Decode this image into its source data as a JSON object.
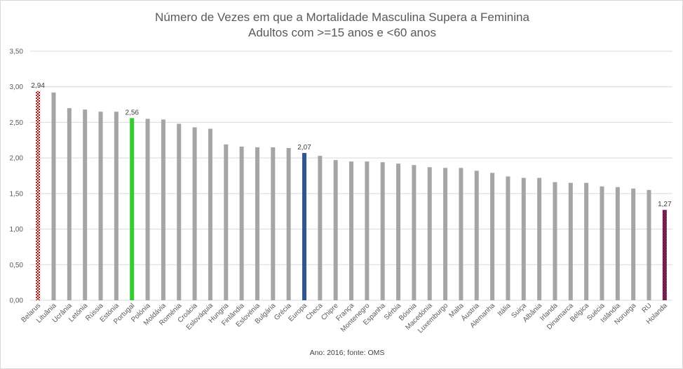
{
  "chart_data": {
    "type": "bar",
    "title": "Número de Vezes em que a Mortalidade Masculina Supera a Feminina",
    "subtitle": "Adultos com >=15 anos e <60 anos",
    "footnote": "Ano:  2016; fonte:  OMS",
    "ylim": [
      0,
      3.5
    ],
    "y_ticks": [
      "0,00",
      "0,50",
      "1,00",
      "1,50",
      "2,00",
      "2,50",
      "3,00",
      "3,50"
    ],
    "categories": [
      "Belarus",
      "Lituânia",
      "Ucrânia",
      "Letónia",
      "Rússia",
      "Estónia",
      "Portugal",
      "Polónia",
      "Moldávia",
      "Roménia",
      "Croácia",
      "Eslováquia",
      "Hungria",
      "Finlândia",
      "Eslovénia",
      "Bulgária",
      "Grécia",
      "Europa",
      "Checa",
      "Chipre",
      "França",
      "Montenegro",
      "Espanha",
      "Sérbia",
      "Bósnia",
      "Macedónia",
      "Luxemburgo",
      "Malta",
      "Áustria",
      "Alemanha",
      "Itália",
      "Suiça",
      "Albânia",
      "Irlanda",
      "Dinamarca",
      "Bélgica",
      "Suécia",
      "Islândia",
      "Noruega",
      "RU",
      "Holanda"
    ],
    "values": [
      2.94,
      2.92,
      2.7,
      2.68,
      2.65,
      2.65,
      2.56,
      2.55,
      2.54,
      2.48,
      2.43,
      2.41,
      2.19,
      2.16,
      2.15,
      2.15,
      2.14,
      2.07,
      2.03,
      1.97,
      1.95,
      1.95,
      1.94,
      1.92,
      1.9,
      1.87,
      1.86,
      1.86,
      1.82,
      1.79,
      1.74,
      1.72,
      1.72,
      1.66,
      1.65,
      1.65,
      1.6,
      1.59,
      1.57,
      1.55,
      1.27
    ],
    "data_labels": [
      {
        "index": 0,
        "text": "2,94"
      },
      {
        "index": 6,
        "text": "2,56"
      },
      {
        "index": 17,
        "text": "2,07"
      },
      {
        "index": 40,
        "text": "1,27"
      }
    ],
    "colors": {
      "default": "#a5a5a5",
      "Portugal": "#33cc33",
      "Europa": "#2f5597",
      "grid": "#d9d9d9"
    },
    "special_styles": {
      "Belarus": "red-white-pattern",
      "Holanda": "red-blue-pattern"
    }
  }
}
